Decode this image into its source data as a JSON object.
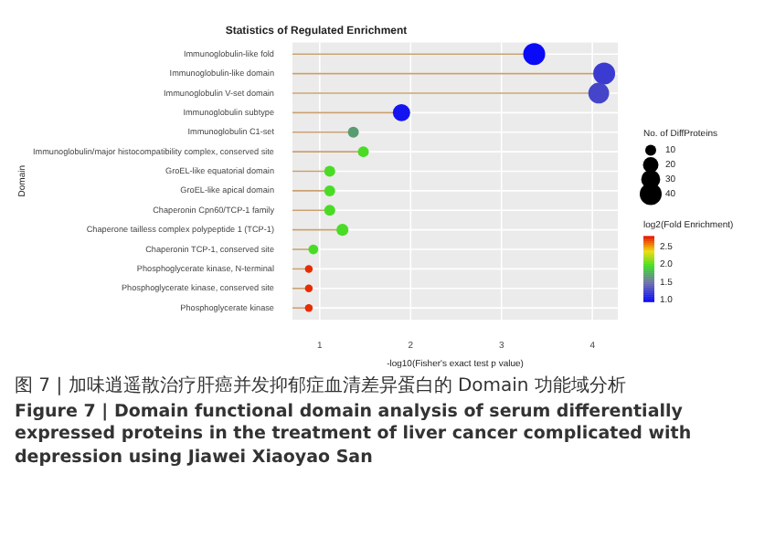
{
  "chart_data": {
    "type": "lollipop",
    "orientation": "horizontal",
    "title": "Statistics of Regulated Enrichment",
    "xlabel": "-log10(Fisher's exact test p value)",
    "ylabel": "Domain",
    "categories": [
      "Immunoglobulin-like fold",
      "Immunoglobulin-like domain",
      "Immunoglobulin V-set domain",
      "Immunoglobulin subtype",
      "Immunoglobulin C1-set",
      "Immunoglobulin/major histocompatibility complex, conserved site",
      "GroEL-like equatorial domain",
      "GroEL-like apical domain",
      "Chaperonin Cpn60/TCP-1 family",
      "Chaperone tailless complex polypeptide 1 (TCP-1)",
      "Chaperonin TCP-1, conserved site",
      "Phosphoglycerate kinase, N-terminal",
      "Phosphoglycerate kinase, conserved site",
      "Phosphoglycerate kinase"
    ],
    "values": [
      3.36,
      4.13,
      4.07,
      1.9,
      1.37,
      1.48,
      1.11,
      1.11,
      1.11,
      1.25,
      0.93,
      0.88,
      0.88,
      0.88
    ],
    "sizes": [
      40,
      40,
      36,
      25,
      10,
      10,
      10,
      10,
      10,
      12,
      8,
      5,
      5,
      5
    ],
    "cvalues": [
      1.0,
      1.25,
      1.3,
      1.05,
      1.7,
      2.0,
      2.0,
      2.0,
      2.0,
      2.0,
      2.0,
      2.75,
      2.75,
      2.75
    ],
    "xlim": [
      0.7,
      4.28
    ],
    "xticks": [
      1,
      2,
      3,
      4
    ],
    "clabel": "log2(Fold Enrichment)",
    "clim": [
      0.95,
      2.8
    ],
    "cticks": [
      {
        "value": 1,
        "label": "1.0"
      },
      {
        "value": 1.5,
        "label": "1.5"
      },
      {
        "value": 2,
        "label": "2.0"
      },
      {
        "value": 2.5,
        "label": "2.5"
      }
    ],
    "legend_title": "No. of DiffProteins",
    "size_legend": [
      10,
      20,
      30,
      40
    ],
    "grid": true,
    "annotations": [
      "图 7 | 加味逍遥散治疗肝癌并发抑郁症血清差异蛋白的 Domain 功能域分析",
      "Figure 7 | Domain functional domain analysis of serum differentially expressed proteins in the treatment of liver cancer complicated with depression using Jiawei Xiaoyao San"
    ]
  }
}
